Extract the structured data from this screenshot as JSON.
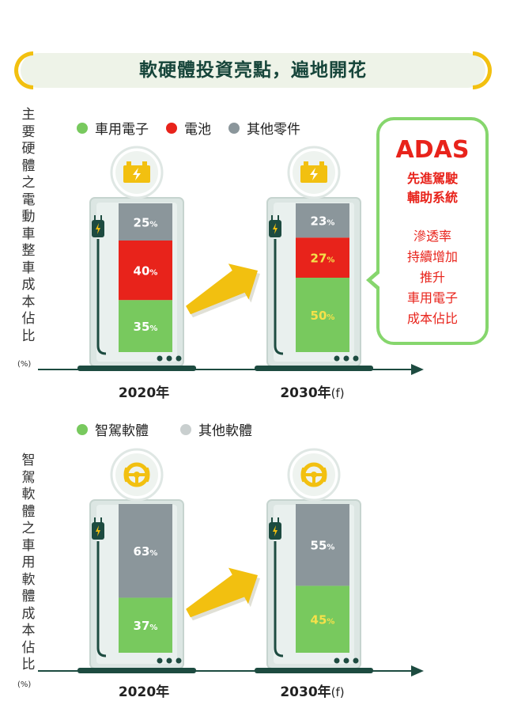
{
  "title": "軟硬體投資亮點，遍地開花",
  "colors": {
    "green": "#78c95e",
    "red": "#e8231b",
    "gray": "#8b969b",
    "lightgray": "#c9cfcf",
    "title": "#16453a",
    "accent": "#f2c010"
  },
  "hardware": {
    "ylabel": "主要硬體之電動車整車成本佔比",
    "unit": "(%)",
    "legend": [
      "車用電子",
      "電池",
      "其他零件"
    ],
    "icon": "battery-icon"
  },
  "software": {
    "ylabel": "智駕軟體之車用軟體成本佔比",
    "unit": "(%)",
    "legend": [
      "智駕軟體",
      "其他軟體"
    ],
    "icon": "steering-wheel-icon"
  },
  "years": {
    "y2020": "2020年",
    "y2030": "2030",
    "y2030f": "(f)"
  },
  "callout": {
    "title": "ADAS",
    "sub1": "先進駕駛",
    "sub2": "輔助系統",
    "lines": [
      "滲透率",
      "持續增加",
      "推升",
      "車用電子",
      "成本佔比"
    ]
  },
  "chart_data": [
    {
      "type": "bar",
      "stacked": true,
      "ylabel": "主要硬體之電動車整車成本佔比 (%)",
      "categories": [
        "2020年",
        "2030年(f)"
      ],
      "series": [
        {
          "name": "車用電子",
          "color": "#78c95e",
          "values": [
            35,
            50
          ],
          "labels": [
            "35%",
            "50%"
          ]
        },
        {
          "name": "電池",
          "color": "#e8231b",
          "values": [
            40,
            27
          ],
          "labels": [
            "40%",
            "27%"
          ]
        },
        {
          "name": "其他零件",
          "color": "#8b969b",
          "values": [
            25,
            23
          ],
          "labels": [
            "25%",
            "23%"
          ]
        }
      ],
      "ylim": [
        0,
        100
      ],
      "legend_position": "top"
    },
    {
      "type": "bar",
      "stacked": true,
      "ylabel": "智駕軟體之車用軟體成本佔比 (%)",
      "categories": [
        "2020年",
        "2030年(f)"
      ],
      "series": [
        {
          "name": "智駕軟體",
          "color": "#78c95e",
          "values": [
            37,
            45
          ],
          "labels": [
            "37%",
            "45%"
          ]
        },
        {
          "name": "其他軟體",
          "color": "#8b969b",
          "values": [
            63,
            55
          ],
          "labels": [
            "63%",
            "55%"
          ]
        }
      ],
      "ylim": [
        0,
        100
      ],
      "legend_position": "top"
    }
  ]
}
